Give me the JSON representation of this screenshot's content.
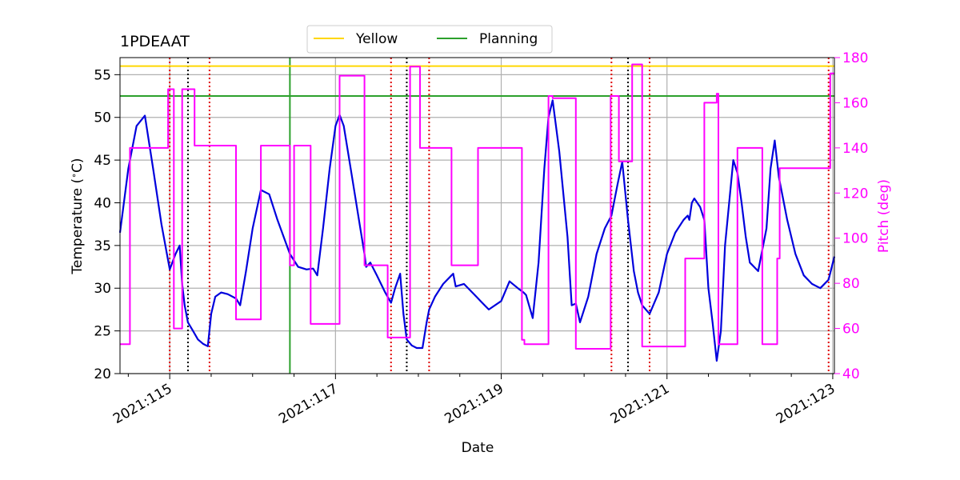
{
  "chart_data": {
    "type": "line",
    "title": "1PDEAAT",
    "xlabel": "Date",
    "ylabel_left": "Temperature ($^\\circ$C)",
    "ylabel_right": "Pitch (deg)",
    "x_unit": "day of year 2021 (DDD:fractional)",
    "xlim": [
      114.4,
      123.02
    ],
    "ylim_left": [
      20,
      57
    ],
    "ylim_right": [
      40,
      180
    ],
    "x_ticks": [
      115,
      117,
      119,
      121,
      123
    ],
    "x_tick_labels": [
      "2021:115",
      "2021:117",
      "2021:119",
      "2021:121",
      "2021:123"
    ],
    "y_ticks_left": [
      20,
      25,
      30,
      35,
      40,
      45,
      50,
      55
    ],
    "y_ticks_right": [
      40,
      60,
      80,
      100,
      120,
      140,
      160,
      180
    ],
    "grid": true,
    "legend": {
      "placement": "top-center",
      "ncol": 2,
      "entries": [
        "Yellow",
        "Planning"
      ]
    },
    "colors": {
      "temperature": "#0000dd",
      "pitch": "#ff00ff",
      "yellow": "#ffd700",
      "planning": "#2ca02c",
      "red_lines": "#e00000",
      "black_lines": "#000000",
      "grid": "#b0b0b0"
    },
    "limits": [
      {
        "name": "Yellow",
        "axis": "left",
        "value": 56
      },
      {
        "name": "Planning",
        "axis": "left",
        "value": 52.5
      }
    ],
    "planning_vline": 116.45,
    "red_dotted_vlines": [
      115.0,
      115.48,
      117.67,
      118.13,
      120.33,
      120.79,
      122.95
    ],
    "black_dotted_vlines": [
      115.22,
      117.86,
      120.53
    ],
    "series": [
      {
        "name": "Temperature",
        "axis": "left",
        "style": "solid",
        "x": [
          114.4,
          114.5,
          114.6,
          114.7,
          114.8,
          114.9,
          115.0,
          115.07,
          115.12,
          115.15,
          115.18,
          115.22,
          115.28,
          115.34,
          115.4,
          115.44,
          115.46,
          115.5,
          115.55,
          115.62,
          115.7,
          115.8,
          115.85,
          115.92,
          116.0,
          116.1,
          116.2,
          116.3,
          116.45,
          116.55,
          116.65,
          116.73,
          116.78,
          116.85,
          116.93,
          117.0,
          117.05,
          117.1,
          117.2,
          117.3,
          117.35,
          117.37,
          117.42,
          117.5,
          117.6,
          117.67,
          117.72,
          117.78,
          117.82,
          117.86,
          117.92,
          117.98,
          118.05,
          118.1,
          118.13,
          118.2,
          118.3,
          118.4,
          118.42,
          118.45,
          118.55,
          118.7,
          118.75,
          118.85,
          119.0,
          119.1,
          119.2,
          119.27,
          119.3,
          119.38,
          119.45,
          119.52,
          119.57,
          119.62,
          119.7,
          119.8,
          119.85,
          119.9,
          119.95,
          120.05,
          120.15,
          120.25,
          120.33,
          120.4,
          120.46,
          120.53,
          120.6,
          120.65,
          120.7,
          120.79,
          120.9,
          121.0,
          121.1,
          121.2,
          121.25,
          121.27,
          121.3,
          121.33,
          121.4,
          121.45,
          121.5,
          121.55,
          121.6,
          121.65,
          121.7,
          121.8,
          121.85,
          121.9,
          121.95,
          122.0,
          122.1,
          122.2,
          122.25,
          122.3,
          122.35,
          122.45,
          122.55,
          122.65,
          122.75,
          122.85,
          122.95,
          123.02
        ],
        "y": [
          36.5,
          44.0,
          49.0,
          50.2,
          44.0,
          37.5,
          32.2,
          34.0,
          35.0,
          30.5,
          28.0,
          26.0,
          25.0,
          24.0,
          23.5,
          23.3,
          23.2,
          27.0,
          29.0,
          29.5,
          29.3,
          28.8,
          28.0,
          32.0,
          37.0,
          41.5,
          41.0,
          38.0,
          34.0,
          32.5,
          32.2,
          32.3,
          31.5,
          37.0,
          44.0,
          49.0,
          50.3,
          49.0,
          43.0,
          37.0,
          34.0,
          32.5,
          33.0,
          31.5,
          29.5,
          28.3,
          30.0,
          31.7,
          27.0,
          24.0,
          23.3,
          23.0,
          23.0,
          26.0,
          27.5,
          29.0,
          30.5,
          31.5,
          31.7,
          30.2,
          30.5,
          29.0,
          28.5,
          27.5,
          28.5,
          30.8,
          30.0,
          29.5,
          29.2,
          26.5,
          33.0,
          44.0,
          50.0,
          52.0,
          46.0,
          36.0,
          28.0,
          28.2,
          26.0,
          29.0,
          34.0,
          37.0,
          38.5,
          42.0,
          44.8,
          38.0,
          32.0,
          29.5,
          28.0,
          27.0,
          29.5,
          34.0,
          36.5,
          38.0,
          38.5,
          38.0,
          40.0,
          40.5,
          39.5,
          38.0,
          30.0,
          26.0,
          21.5,
          25.0,
          35.0,
          45.0,
          43.5,
          40.0,
          36.0,
          33.0,
          32.0,
          37.0,
          44.0,
          47.3,
          43.0,
          38.0,
          34.0,
          31.5,
          30.5,
          30.0,
          31.0,
          33.7
        ]
      },
      {
        "name": "Pitch",
        "axis": "right",
        "style": "step",
        "x": [
          114.4,
          114.52,
          114.52,
          114.53,
          114.53,
          114.98,
          114.98,
          115.05,
          115.05,
          115.15,
          115.15,
          115.3,
          115.3,
          115.36,
          115.36,
          115.52,
          115.52,
          115.8,
          115.8,
          116.1,
          116.1,
          116.45,
          116.45,
          116.5,
          116.5,
          116.68,
          116.68,
          116.7,
          116.7,
          117.05,
          117.05,
          117.35,
          117.35,
          117.63,
          117.63,
          117.65,
          117.65,
          117.9,
          117.9,
          118.02,
          118.02,
          118.1,
          118.1,
          118.4,
          118.4,
          118.72,
          118.72,
          119.25,
          119.25,
          119.28,
          119.28,
          119.57,
          119.57,
          119.62,
          119.62,
          119.85,
          119.85,
          119.9,
          119.9,
          119.95,
          119.95,
          120.32,
          120.32,
          120.42,
          120.42,
          120.58,
          120.58,
          120.7,
          120.7,
          120.85,
          120.85,
          121.22,
          121.22,
          121.45,
          121.45,
          121.6,
          121.6,
          121.62,
          121.62,
          121.85,
          121.85,
          122.15,
          122.15,
          122.33,
          122.33,
          122.36,
          122.36,
          122.4,
          122.4,
          122.97,
          122.97,
          123.02
        ],
        "y": [
          53,
          53,
          140,
          140,
          140,
          140,
          166,
          166,
          60,
          60,
          166,
          166,
          141,
          141,
          141,
          141,
          141,
          141,
          64,
          64,
          141,
          141,
          88,
          88,
          141,
          141,
          141,
          141,
          62,
          62,
          172,
          172,
          88,
          88,
          56,
          56,
          56,
          56,
          176,
          176,
          140,
          140,
          140,
          140,
          88,
          88,
          140,
          140,
          55,
          55,
          53,
          53,
          163,
          163,
          162,
          162,
          162,
          162,
          51,
          51,
          51,
          51,
          163,
          163,
          134,
          134,
          177,
          177,
          52,
          52,
          52,
          52,
          91,
          91,
          160,
          160,
          164,
          164,
          53,
          53,
          140,
          140,
          53,
          53,
          91,
          91,
          131,
          131,
          131,
          131,
          173,
          173
        ]
      }
    ]
  }
}
